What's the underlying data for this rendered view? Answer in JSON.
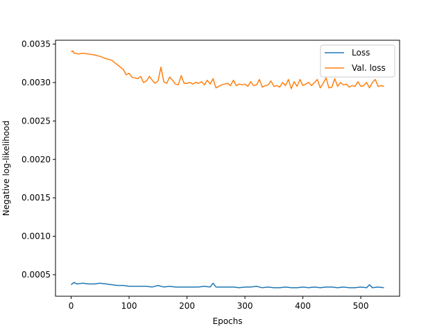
{
  "chart_data": {
    "type": "line",
    "title": "",
    "xlabel": "Epochs",
    "ylabel": "Negative log-likelihood",
    "xlim": [
      -27,
      567
    ],
    "ylim": [
      0.00022,
      0.00355
    ],
    "xticks": [
      0,
      100,
      200,
      300,
      400,
      500
    ],
    "xtick_labels": [
      "0",
      "100",
      "200",
      "300",
      "400",
      "500"
    ],
    "yticks": [
      0.0005,
      0.001,
      0.0015,
      0.002,
      0.0025,
      0.003,
      0.0035
    ],
    "ytick_labels": [
      "0.0005",
      "0.0010",
      "0.0015",
      "0.0020",
      "0.0025",
      "0.0030",
      "0.0035"
    ],
    "grid": false,
    "legend_position": "top-right",
    "series": [
      {
        "name": "Loss",
        "color": "#1f77b4",
        "x": [
          0,
          5,
          10,
          20,
          30,
          40,
          50,
          60,
          70,
          80,
          90,
          100,
          110,
          120,
          130,
          140,
          150,
          160,
          170,
          180,
          190,
          200,
          210,
          220,
          230,
          240,
          245,
          250,
          260,
          270,
          280,
          290,
          300,
          310,
          320,
          330,
          340,
          350,
          360,
          370,
          380,
          390,
          400,
          410,
          420,
          430,
          440,
          450,
          460,
          470,
          480,
          490,
          500,
          510,
          515,
          520,
          530,
          540
        ],
        "y": [
          0.00037,
          0.0004,
          0.00038,
          0.00039,
          0.00038,
          0.00038,
          0.00039,
          0.00038,
          0.00037,
          0.00036,
          0.00036,
          0.00035,
          0.00035,
          0.00035,
          0.00035,
          0.00034,
          0.00036,
          0.00034,
          0.00035,
          0.00034,
          0.00034,
          0.00034,
          0.00034,
          0.00034,
          0.00035,
          0.00034,
          0.00039,
          0.00034,
          0.00034,
          0.00034,
          0.00034,
          0.00033,
          0.00034,
          0.00034,
          0.00035,
          0.00033,
          0.00034,
          0.00033,
          0.00033,
          0.00034,
          0.00033,
          0.00033,
          0.00034,
          0.00033,
          0.00034,
          0.00033,
          0.00034,
          0.00034,
          0.00033,
          0.00034,
          0.00033,
          0.00033,
          0.00034,
          0.00033,
          0.00037,
          0.00033,
          0.00034,
          0.00033
        ]
      },
      {
        "name": "Val. loss",
        "color": "#ff7f0e",
        "x": [
          0,
          3,
          5,
          8,
          12,
          20,
          30,
          40,
          50,
          60,
          70,
          80,
          90,
          95,
          100,
          105,
          110,
          115,
          120,
          125,
          130,
          135,
          140,
          145,
          150,
          155,
          160,
          165,
          170,
          175,
          180,
          185,
          190,
          195,
          200,
          205,
          210,
          215,
          220,
          225,
          230,
          235,
          240,
          245,
          250,
          260,
          265,
          270,
          275,
          280,
          285,
          290,
          295,
          300,
          305,
          310,
          315,
          320,
          325,
          330,
          335,
          340,
          345,
          350,
          355,
          360,
          365,
          370,
          375,
          380,
          385,
          390,
          395,
          400,
          405,
          410,
          415,
          420,
          425,
          430,
          435,
          440,
          445,
          450,
          455,
          460,
          465,
          470,
          475,
          480,
          485,
          490,
          495,
          500,
          505,
          510,
          515,
          520,
          525,
          530,
          535,
          540
        ],
        "y": [
          0.0034,
          0.00341,
          0.00338,
          0.00338,
          0.00337,
          0.00338,
          0.00337,
          0.00336,
          0.00334,
          0.00331,
          0.00329,
          0.00323,
          0.00317,
          0.0031,
          0.00312,
          0.00307,
          0.00306,
          0.00305,
          0.00308,
          0.003,
          0.00302,
          0.00308,
          0.00303,
          0.00299,
          0.00302,
          0.0032,
          0.00301,
          0.00299,
          0.00307,
          0.00303,
          0.00298,
          0.00297,
          0.00309,
          0.00299,
          0.00299,
          0.003,
          0.00298,
          0.003,
          0.00299,
          0.00301,
          0.00297,
          0.00303,
          0.00298,
          0.00305,
          0.00293,
          0.00297,
          0.00298,
          0.00299,
          0.00296,
          0.00303,
          0.00296,
          0.00298,
          0.00297,
          0.00298,
          0.00295,
          0.00301,
          0.00296,
          0.00297,
          0.00304,
          0.00294,
          0.00296,
          0.00297,
          0.00302,
          0.00295,
          0.00296,
          0.00294,
          0.003,
          0.00296,
          0.00304,
          0.00292,
          0.00301,
          0.00295,
          0.00304,
          0.00296,
          0.00298,
          0.003,
          0.00296,
          0.003,
          0.00304,
          0.00293,
          0.00299,
          0.00306,
          0.00293,
          0.00294,
          0.00305,
          0.00295,
          0.003,
          0.00297,
          0.00298,
          0.00294,
          0.00296,
          0.00295,
          0.00301,
          0.00295,
          0.00296,
          0.003,
          0.00293,
          0.003,
          0.00304,
          0.00295,
          0.00296,
          0.00295
        ]
      }
    ]
  }
}
